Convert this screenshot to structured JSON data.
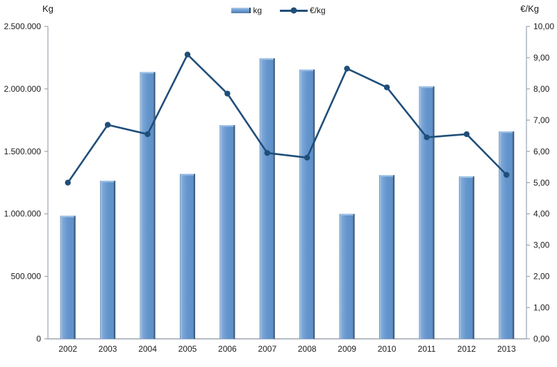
{
  "colors": {
    "background": "#ffffff",
    "bar_main": "#6495cd",
    "bar_highlight": "#a9c7e7",
    "bar_top_cap": "#9cc0e5",
    "bar_edge_dark": "#2e4b6b",
    "line": "#1f4e79",
    "axis": "#9aa4b0",
    "text": "#1a1a1a",
    "bar_gradient": [
      [
        "0%",
        "#3e6695"
      ],
      [
        "5%",
        "#a9c7e7"
      ],
      [
        "16%",
        "#7ea8d8"
      ],
      [
        "50%",
        "#6495cd"
      ],
      [
        "86%",
        "#5f91c9"
      ],
      [
        "92%",
        "#49698f"
      ],
      [
        "100%",
        "#2e4b6b"
      ]
    ]
  },
  "chart_data": {
    "type": "bar+line combo",
    "categories": [
      "2002",
      "2003",
      "2004",
      "2005",
      "2006",
      "2007",
      "2008",
      "2009",
      "2010",
      "2011",
      "2012",
      "2013"
    ],
    "series": [
      {
        "name": "kg",
        "type": "bar",
        "axis": "left",
        "values": [
          985000,
          1265000,
          2135000,
          1320000,
          1710000,
          2245000,
          2155000,
          1000000,
          1310000,
          2020000,
          1300000,
          1660000
        ]
      },
      {
        "name": "€/kg",
        "type": "line",
        "axis": "right",
        "values": [
          5.0,
          6.85,
          6.55,
          9.1,
          7.85,
          5.95,
          5.8,
          8.65,
          8.05,
          6.45,
          6.55,
          5.25
        ]
      }
    ],
    "left_axis": {
      "title": "Kg",
      "min": 0,
      "max": 2500000,
      "step": 500000,
      "tick_labels": [
        "0",
        "500.000",
        "1.000.000",
        "1.500.000",
        "2.000.000",
        "2.500.000"
      ],
      "tick_format": "dot-thousands"
    },
    "right_axis": {
      "title": "€/Kg",
      "min": 0,
      "max": 10,
      "step": 1,
      "tick_labels": [
        "0,00",
        "1,00",
        "2,00",
        "3,00",
        "4,00",
        "5,00",
        "6,00",
        "7,00",
        "8,00",
        "9,00",
        "10,00"
      ],
      "tick_format": "comma-decimal-2"
    },
    "grid": false,
    "legend_position": "top-center",
    "title": ""
  }
}
